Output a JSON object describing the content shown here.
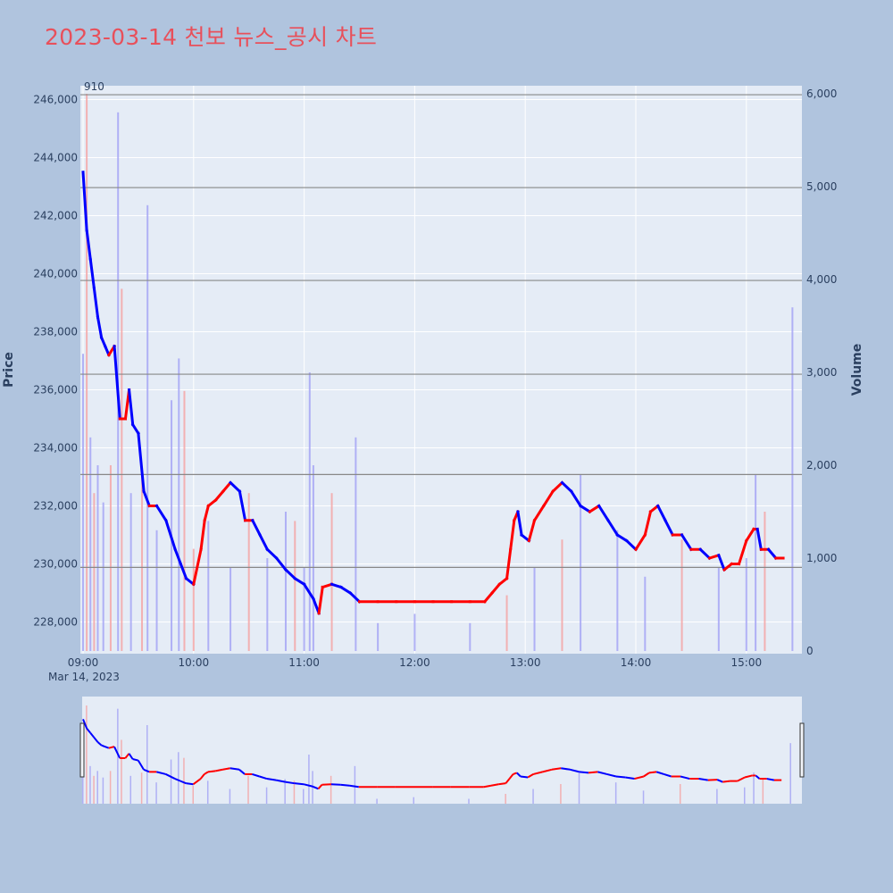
{
  "title": "2023-03-14 천보 뉴스_공시 차트",
  "colors": {
    "background": "#b0c4de",
    "plot_bg": "#e5ecf6",
    "title": "#e8505b",
    "up": "#ff0000",
    "down": "#0000ff",
    "up_volume": "#f4a6a6",
    "down_volume": "#a6a6f4",
    "hline": "#888888"
  },
  "chart_data": {
    "type": "line",
    "title": "2023-03-14 천보 뉴스_공시 차트",
    "ylabel": "Price",
    "y2label": "Volume",
    "date_label": "Mar 14, 2023",
    "annotation": "910",
    "ylim": [
      227000,
      246500
    ],
    "y2lim": [
      0,
      6000
    ],
    "price_ticks": [
      "228,000",
      "230,000",
      "232,000",
      "234,000",
      "236,000",
      "238,000",
      "240,000",
      "242,000",
      "244,000",
      "246,000"
    ],
    "volume_ticks": [
      "0",
      "1,000",
      "2,000",
      "3,000",
      "4,000",
      "5,000",
      "6,000"
    ],
    "time_ticks": [
      "09:00",
      "10:00",
      "11:00",
      "12:00",
      "13:00",
      "14:00",
      "15:00"
    ],
    "hlines_volume": [
      900,
      1900,
      2980,
      3990,
      4990,
      5990
    ],
    "price_path": [
      [
        "09:00",
        243500
      ],
      [
        "09:02",
        241500
      ],
      [
        "09:04",
        240500
      ],
      [
        "09:06",
        239500
      ],
      [
        "09:08",
        238500
      ],
      [
        "09:10",
        237800
      ],
      [
        "09:12",
        237500
      ],
      [
        "09:14",
        237200
      ],
      [
        "09:17",
        237500
      ],
      [
        "09:20",
        235000
      ],
      [
        "09:23",
        235000
      ],
      [
        "09:25",
        236000
      ],
      [
        "09:27",
        234800
      ],
      [
        "09:30",
        234500
      ],
      [
        "09:33",
        232500
      ],
      [
        "09:36",
        232000
      ],
      [
        "09:40",
        232000
      ],
      [
        "09:45",
        231500
      ],
      [
        "09:50",
        230500
      ],
      [
        "09:53",
        230000
      ],
      [
        "09:56",
        229500
      ],
      [
        "10:00",
        229300
      ],
      [
        "10:04",
        230500
      ],
      [
        "10:06",
        231500
      ],
      [
        "10:08",
        232000
      ],
      [
        "10:12",
        232200
      ],
      [
        "10:16",
        232500
      ],
      [
        "10:20",
        232800
      ],
      [
        "10:25",
        232500
      ],
      [
        "10:28",
        231500
      ],
      [
        "10:32",
        231500
      ],
      [
        "10:36",
        231000
      ],
      [
        "10:40",
        230500
      ],
      [
        "10:45",
        230200
      ],
      [
        "10:50",
        229800
      ],
      [
        "10:55",
        229500
      ],
      [
        "11:00",
        229300
      ],
      [
        "11:05",
        228800
      ],
      [
        "11:08",
        228300
      ],
      [
        "11:10",
        229200
      ],
      [
        "11:15",
        229300
      ],
      [
        "11:20",
        229200
      ],
      [
        "11:25",
        229000
      ],
      [
        "11:30",
        228700
      ],
      [
        "11:40",
        228700
      ],
      [
        "11:50",
        228700
      ],
      [
        "12:00",
        228700
      ],
      [
        "12:10",
        228700
      ],
      [
        "12:20",
        228700
      ],
      [
        "12:30",
        228700
      ],
      [
        "12:38",
        228700
      ],
      [
        "12:42",
        229000
      ],
      [
        "12:46",
        229300
      ],
      [
        "12:50",
        229500
      ],
      [
        "12:52",
        230500
      ],
      [
        "12:54",
        231500
      ],
      [
        "12:56",
        231800
      ],
      [
        "12:58",
        231000
      ],
      [
        "13:02",
        230800
      ],
      [
        "13:05",
        231500
      ],
      [
        "13:10",
        232000
      ],
      [
        "13:15",
        232500
      ],
      [
        "13:20",
        232800
      ],
      [
        "13:25",
        232500
      ],
      [
        "13:30",
        232000
      ],
      [
        "13:35",
        231800
      ],
      [
        "13:40",
        232000
      ],
      [
        "13:45",
        231500
      ],
      [
        "13:50",
        231000
      ],
      [
        "13:55",
        230800
      ],
      [
        "14:00",
        230500
      ],
      [
        "14:05",
        231000
      ],
      [
        "14:08",
        231800
      ],
      [
        "14:12",
        232000
      ],
      [
        "14:16",
        231500
      ],
      [
        "14:20",
        231000
      ],
      [
        "14:25",
        231000
      ],
      [
        "14:30",
        230500
      ],
      [
        "14:35",
        230500
      ],
      [
        "14:40",
        230200
      ],
      [
        "14:45",
        230300
      ],
      [
        "14:48",
        229800
      ],
      [
        "14:52",
        230000
      ],
      [
        "14:56",
        230000
      ],
      [
        "15:00",
        230800
      ],
      [
        "15:04",
        231200
      ],
      [
        "15:06",
        231200
      ],
      [
        "15:08",
        230500
      ],
      [
        "15:12",
        230500
      ],
      [
        "15:16",
        230200
      ],
      [
        "15:20",
        230200
      ]
    ],
    "volume_bars": [
      [
        "09:00",
        3200,
        "down"
      ],
      [
        "09:02",
        6000,
        "up"
      ],
      [
        "09:04",
        2300,
        "down"
      ],
      [
        "09:06",
        1700,
        "up"
      ],
      [
        "09:08",
        2000,
        "down"
      ],
      [
        "09:11",
        1600,
        "down"
      ],
      [
        "09:15",
        2000,
        "up"
      ],
      [
        "09:19",
        5800,
        "down"
      ],
      [
        "09:21",
        3900,
        "up"
      ],
      [
        "09:26",
        1700,
        "down"
      ],
      [
        "09:32",
        1900,
        "up"
      ],
      [
        "09:35",
        4800,
        "down"
      ],
      [
        "09:40",
        1300,
        "down"
      ],
      [
        "09:48",
        2700,
        "down"
      ],
      [
        "09:52",
        3150,
        "down"
      ],
      [
        "09:55",
        2800,
        "up"
      ],
      [
        "10:00",
        1100,
        "up"
      ],
      [
        "10:08",
        1400,
        "down"
      ],
      [
        "10:20",
        900,
        "down"
      ],
      [
        "10:30",
        1700,
        "up"
      ],
      [
        "10:40",
        1000,
        "down"
      ],
      [
        "10:50",
        1500,
        "down"
      ],
      [
        "10:55",
        1400,
        "up"
      ],
      [
        "11:00",
        900,
        "down"
      ],
      [
        "11:03",
        3000,
        "down"
      ],
      [
        "11:05",
        2000,
        "down"
      ],
      [
        "11:15",
        1700,
        "up"
      ],
      [
        "11:28",
        2300,
        "down"
      ],
      [
        "11:40",
        300,
        "down"
      ],
      [
        "12:00",
        400,
        "down"
      ],
      [
        "12:30",
        300,
        "down"
      ],
      [
        "12:50",
        600,
        "up"
      ],
      [
        "13:05",
        900,
        "down"
      ],
      [
        "13:20",
        1200,
        "up"
      ],
      [
        "13:30",
        1900,
        "down"
      ],
      [
        "13:50",
        1300,
        "down"
      ],
      [
        "14:05",
        800,
        "down"
      ],
      [
        "14:25",
        1200,
        "up"
      ],
      [
        "14:45",
        900,
        "down"
      ],
      [
        "15:00",
        1000,
        "down"
      ],
      [
        "15:05",
        1900,
        "down"
      ],
      [
        "15:10",
        1500,
        "up"
      ],
      [
        "15:25",
        3700,
        "down"
      ]
    ]
  }
}
